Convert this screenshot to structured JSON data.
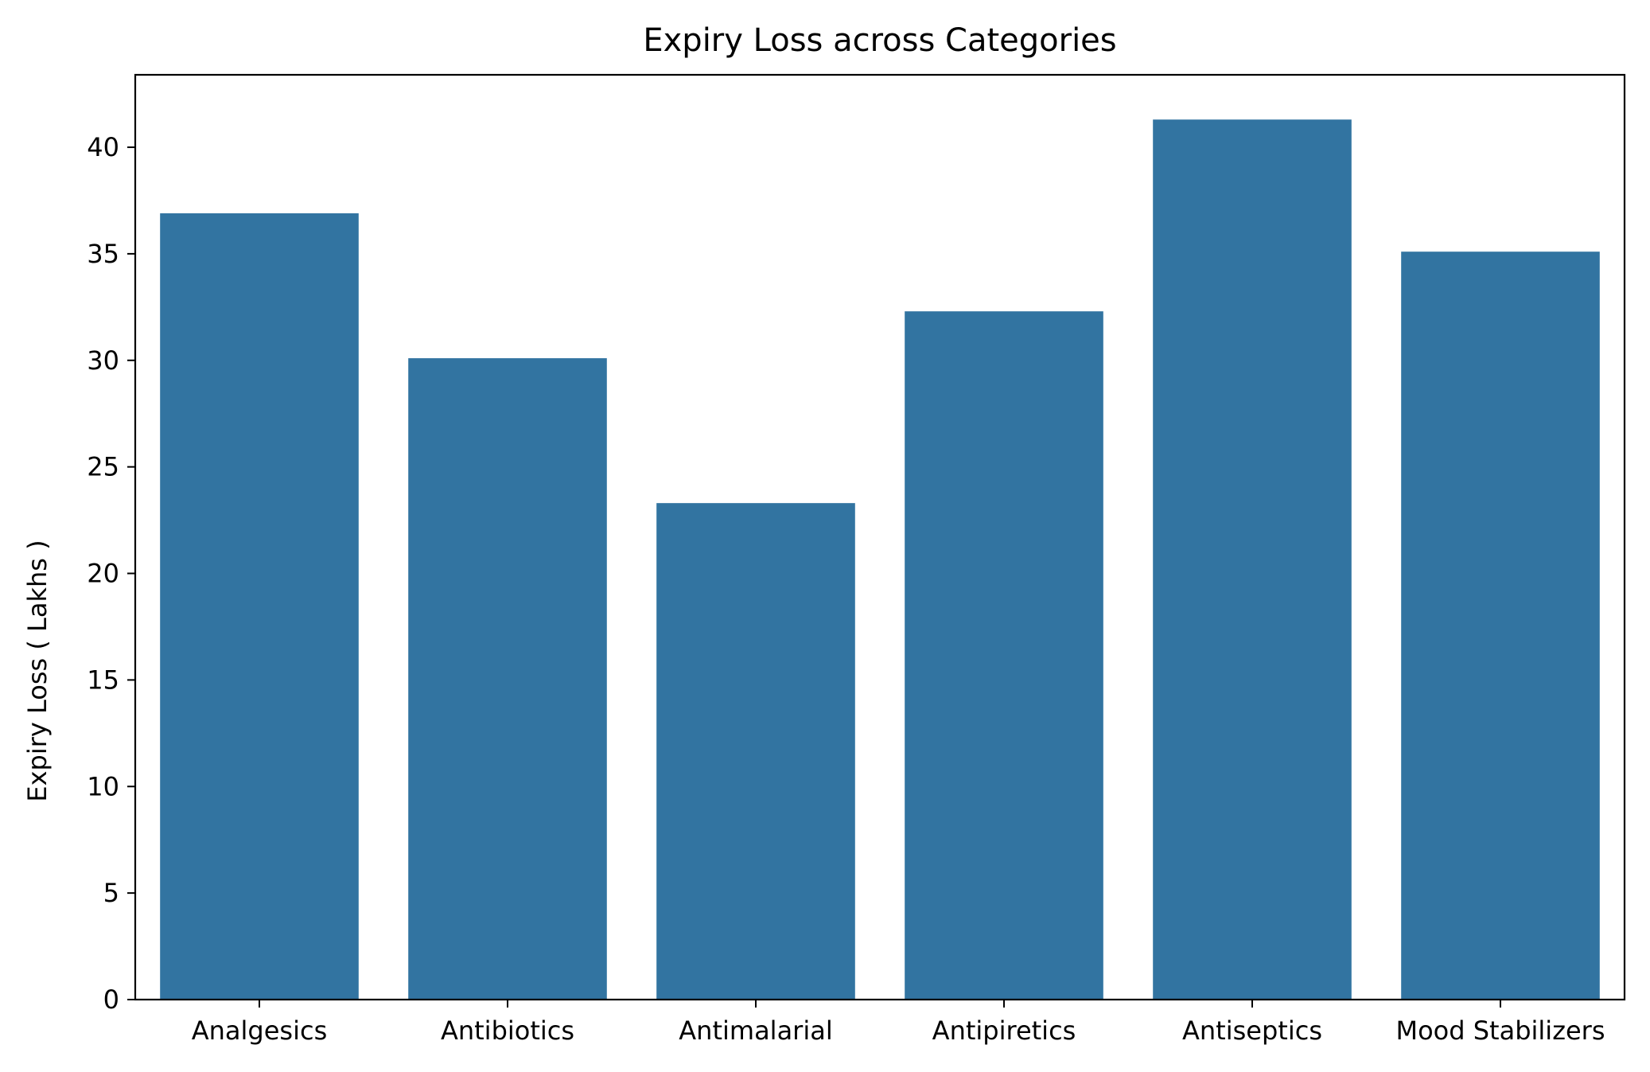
{
  "chart_data": {
    "type": "bar",
    "title": "Expiry Loss across Categories",
    "xlabel": "",
    "ylabel": "Expiry Loss ( Lakhs )",
    "categories": [
      "Analgesics",
      "Antibiotics",
      "Antimalarial",
      "Antipiretics",
      "Antiseptics",
      "Mood Stabilizers"
    ],
    "values": [
      36.9,
      30.1,
      23.3,
      32.3,
      41.3,
      35.1
    ],
    "ylim": [
      0,
      43.4
    ],
    "yticks": [
      0,
      5,
      10,
      15,
      20,
      25,
      30,
      35,
      40
    ],
    "bar_color": "#3274a1",
    "grid": false,
    "legend": "none"
  }
}
